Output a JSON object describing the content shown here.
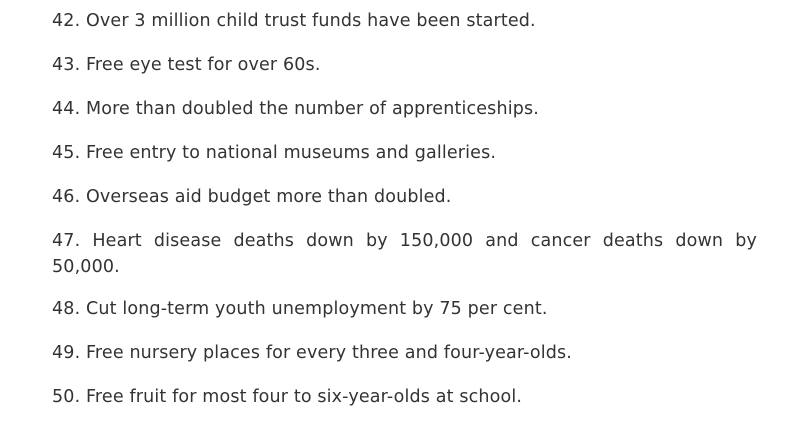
{
  "items": [
    {
      "text": "42. Over 3 million child trust funds have been started."
    },
    {
      "text": "43. Free eye test for over 60s."
    },
    {
      "text": "44. More than doubled the number of apprenticeships."
    },
    {
      "text": "45. Free entry to national museums and galleries."
    },
    {
      "text": "46. Overseas aid budget more than doubled."
    },
    {
      "text": "47. Heart disease deaths down by 150,000 and cancer deaths down by 50,000."
    },
    {
      "text": "48. Cut long-term youth unemployment by 75 per cent."
    },
    {
      "text": "49. Free nursery places for every three and four-year-olds."
    },
    {
      "text": "50. Free fruit for most four to six-year-olds at school."
    }
  ]
}
